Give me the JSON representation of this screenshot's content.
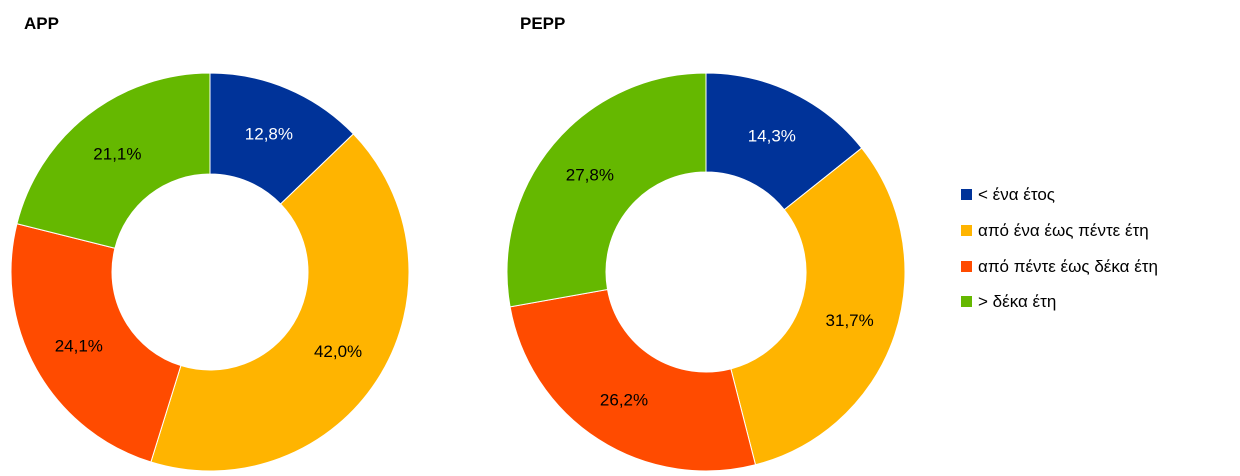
{
  "chart_data": [
    {
      "type": "pie",
      "title": "APP",
      "categories": [
        "< ένα έτος",
        "από ένα έως πέντε έτη",
        "από πέντε έως δέκα έτη",
        "> δέκα έτη"
      ],
      "values": [
        12.8,
        42.0,
        24.1,
        21.1
      ],
      "labels": [
        "12,8%",
        "42,0%",
        "24,1%",
        "21,1%"
      ],
      "donut": true
    },
    {
      "type": "pie",
      "title": "PEPP",
      "categories": [
        "< ένα έτος",
        "από ένα έως πέντε έτη",
        "από πέντε έως δέκα έτη",
        "> δέκα έτη"
      ],
      "values": [
        14.3,
        31.7,
        26.2,
        27.8
      ],
      "labels": [
        "14,3%",
        "31,7%",
        "26,2%",
        "27,8%"
      ],
      "donut": true
    }
  ],
  "legend": {
    "placement": "right",
    "items": [
      "< ένα έτος",
      "από ένα έως πέντε έτη",
      "από πέντε έως δέκα έτη",
      "> δέκα έτη"
    ]
  },
  "colors": [
    "#003399",
    "#FFB400",
    "#FF4B00",
    "#65B800"
  ],
  "label_colors": [
    "#FFFFFF",
    "#000000",
    "#000000",
    "#000000"
  ]
}
